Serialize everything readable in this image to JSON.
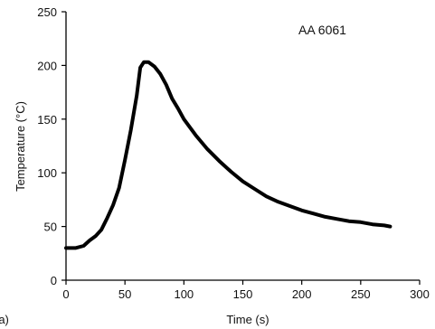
{
  "chart_data": {
    "type": "line",
    "xlabel": "Time (s)",
    "ylabel": "Temperature (°C)",
    "xlim": [
      0,
      300
    ],
    "ylim": [
      0,
      250
    ],
    "x_ticks": [
      0,
      50,
      100,
      150,
      200,
      250,
      300
    ],
    "y_ticks": [
      0,
      50,
      100,
      150,
      200,
      250
    ],
    "grid": false,
    "annotations": [
      "AA 6061"
    ],
    "panel_label": "(a)",
    "series": [
      {
        "color": "#000000",
        "x": [
          0,
          8,
          15,
          20,
          25,
          30,
          35,
          40,
          45,
          50,
          55,
          60,
          63,
          66,
          70,
          75,
          80,
          85,
          90,
          95,
          100,
          110,
          120,
          130,
          140,
          150,
          160,
          170,
          180,
          190,
          200,
          210,
          220,
          230,
          240,
          250,
          260,
          270,
          275
        ],
        "y": [
          30,
          30,
          32,
          37,
          41,
          47,
          58,
          70,
          86,
          112,
          140,
          172,
          198,
          203,
          203,
          199,
          192,
          182,
          169,
          160,
          150,
          135,
          122,
          111,
          101,
          92,
          85,
          78,
          73,
          69,
          65,
          62,
          59,
          57,
          55,
          54,
          52,
          51,
          50
        ]
      }
    ]
  }
}
